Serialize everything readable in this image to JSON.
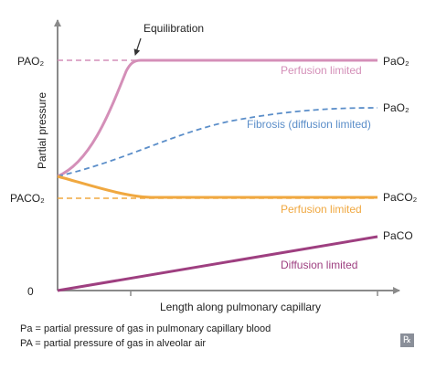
{
  "colors": {
    "axis": "#8a8a8a",
    "o2_perfusion": "#d48fb8",
    "o2_fibrosis": "#5b8ec9",
    "co2": "#f0a840",
    "co_diffusion": "#9e3f80",
    "text": "#222222"
  },
  "labels": {
    "equilibration": "Equilibration",
    "y_axis": "Partial pressure",
    "x_axis": "Length along pulmonary capillary",
    "zero": "0",
    "pao2_alveolar": "PAO₂",
    "paco2_alveolar": "PACO₂",
    "pao2_right": "PaO₂",
    "pao2_fibrosis_right": "PaO₂",
    "paco2_right": "PaCO₂",
    "paco_right": "PaCO",
    "perfusion_limited_o2": "Perfusion limited",
    "fibrosis": "Fibrosis (diffusion limited)",
    "perfusion_limited_co2": "Perfusion limited",
    "diffusion_limited": "Diffusion limited"
  },
  "legend": {
    "line1": "Pa = partial pressure of gas in pulmonary capillary blood",
    "line2": "PA = partial pressure of gas in alveolar air"
  },
  "logo": "℞"
}
